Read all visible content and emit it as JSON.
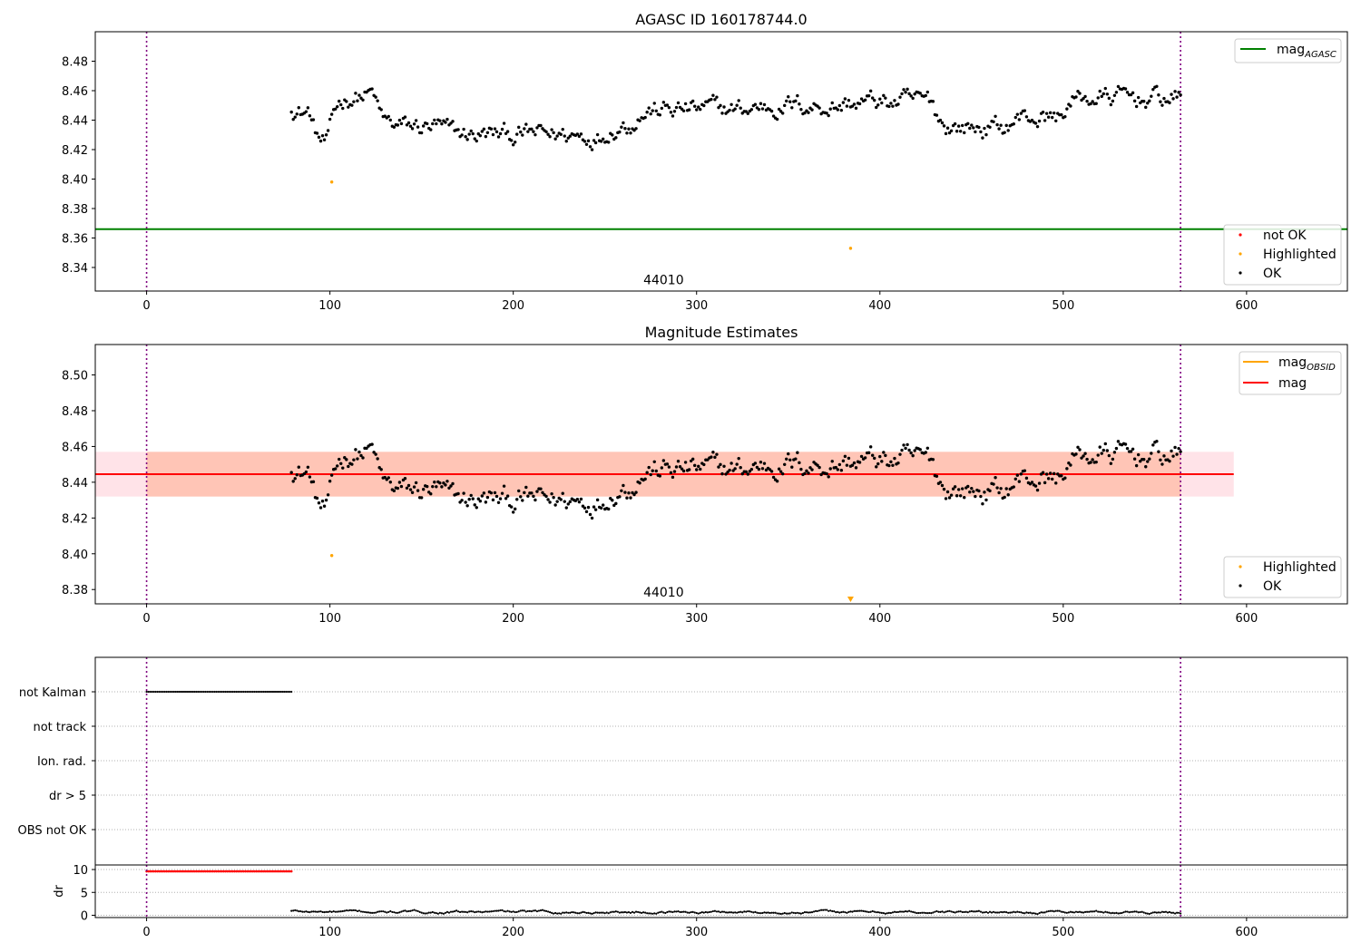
{
  "chart_data": [
    {
      "type": "scatter",
      "title": "AGASC ID 160178744.0",
      "xlim": [
        -28,
        655
      ],
      "ylim": [
        8.324,
        8.5
      ],
      "x_ticks": [
        0,
        100,
        200,
        300,
        400,
        500,
        600
      ],
      "y_ticks": [
        8.34,
        8.36,
        8.38,
        8.4,
        8.42,
        8.44,
        8.46,
        8.48
      ],
      "vlines": [
        0,
        564
      ],
      "hlines": [
        {
          "name": "mag",
          "subscript": "AGASC",
          "y": 8.366,
          "color": "#008000"
        }
      ],
      "annotation": {
        "text": "44010",
        "x": 282,
        "y": 8.33
      },
      "series_ranges": {
        "x": [
          79,
          564
        ],
        "y_range": [
          8.416,
          8.468
        ]
      },
      "highlighted_points": [
        {
          "x": 101,
          "y": 8.398
        },
        {
          "x": 384,
          "y": 8.353
        }
      ],
      "line_legend": [
        {
          "name": "mag",
          "subscript": "AGASC",
          "color": "#008000"
        }
      ],
      "marker_legend": [
        {
          "name": "not OK",
          "color": "#ff0000"
        },
        {
          "name": "Highlighted",
          "color": "#ffa500"
        },
        {
          "name": "OK",
          "color": "#000000"
        }
      ]
    },
    {
      "type": "scatter",
      "title": "Magnitude Estimates",
      "xlim": [
        -28,
        655
      ],
      "ylim": [
        8.372,
        8.517
      ],
      "x_ticks": [
        0,
        100,
        200,
        300,
        400,
        500,
        600
      ],
      "y_ticks": [
        8.38,
        8.4,
        8.42,
        8.44,
        8.46,
        8.48,
        8.5
      ],
      "vlines": [
        0,
        564
      ],
      "hlines": [
        {
          "name": "mag",
          "y": 8.4445,
          "color": "#ff0000"
        }
      ],
      "bands": [
        {
          "x": [
            -28,
            593
          ],
          "y": [
            8.432,
            8.457
          ],
          "color": "#ffc0cb"
        },
        {
          "x": [
            0,
            564
          ],
          "y": [
            8.432,
            8.457
          ],
          "color": "#ffa07a"
        }
      ],
      "annotation": {
        "text": "44010",
        "x": 282,
        "y": 8.378
      },
      "series_ranges": {
        "x": [
          79,
          564
        ],
        "y_range": [
          8.416,
          8.468
        ]
      },
      "highlighted_points": [
        {
          "x": 101,
          "y": 8.399
        },
        {
          "x": 384,
          "y": 8.374
        }
      ],
      "line_legend": [
        {
          "name": "mag",
          "subscript": "OBSID",
          "color": "#ffa500"
        },
        {
          "name": "mag",
          "color": "#ff0000"
        }
      ],
      "marker_legend": [
        {
          "name": "Highlighted",
          "color": "#ffa500"
        },
        {
          "name": "OK",
          "color": "#000000"
        }
      ]
    },
    {
      "type": "scatter",
      "xlim": [
        -28,
        655
      ],
      "categories": [
        "not Kalman",
        "not track",
        "Ion. rad.",
        "dr > 5",
        "OBS not OK"
      ],
      "flags": [
        {
          "category": "not Kalman",
          "x": [
            0,
            79
          ]
        }
      ],
      "vlines": [
        0,
        564
      ]
    },
    {
      "type": "scatter",
      "ylabel": "dr",
      "xlim": [
        -28,
        655
      ],
      "ylim": [
        -0.5,
        11
      ],
      "x_ticks": [
        0,
        100,
        200,
        300,
        400,
        500,
        600
      ],
      "y_ticks": [
        0,
        5,
        10
      ],
      "vlines": [
        0,
        564
      ],
      "flat_segment": {
        "x": [
          0,
          79
        ],
        "y": 9.6
      },
      "series_ranges": {
        "x": [
          79,
          564
        ],
        "y_range": [
          0,
          1.8
        ]
      }
    }
  ]
}
